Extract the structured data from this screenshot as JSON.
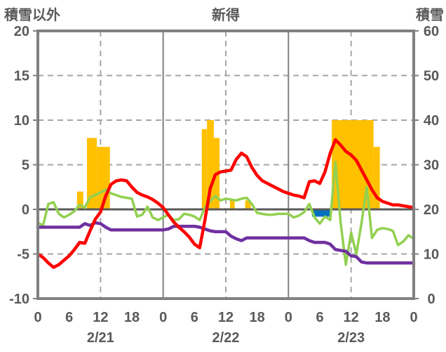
{
  "header": {
    "left_axis_title": "積雪以外",
    "title": "新得",
    "right_axis_title": "積雪"
  },
  "chart_data": {
    "type": "combo-bar-line",
    "title": "新得",
    "left_axis": {
      "title": "積雪以外",
      "min": -10,
      "max": 20,
      "ticks": [
        20,
        15,
        10,
        5,
        0,
        -5,
        -10
      ]
    },
    "right_axis": {
      "title": "積雪",
      "min": 0,
      "max": 60,
      "ticks": [
        60,
        50,
        40,
        30,
        20,
        10,
        0
      ]
    },
    "x_axis": {
      "unit": "hour",
      "range": [
        0,
        72
      ],
      "tick_hours": [
        0,
        6,
        12,
        18,
        24,
        30,
        36,
        42,
        48,
        54,
        60,
        66,
        72
      ],
      "tick_labels": [
        "0",
        "6",
        "12",
        "18",
        "0",
        "6",
        "12",
        "18",
        "0",
        "6",
        "12",
        "18",
        "0"
      ],
      "date_labels": [
        {
          "label": "2/21",
          "center_hour": 12
        },
        {
          "label": "2/22",
          "center_hour": 36
        },
        {
          "label": "2/23",
          "center_hour": 60
        }
      ]
    },
    "gridlines": {
      "horizontal_dashed_left_values": [
        15,
        10,
        5,
        -5
      ],
      "vertical_dashed_hours": [
        12,
        36,
        60
      ],
      "vertical_solid_hours": [
        24,
        48
      ],
      "zero_line_left_value": 0
    },
    "series": [
      {
        "name": "orange-bars",
        "type": "bar",
        "axis": "left",
        "color": "#FFC000",
        "segments": [
          {
            "start": 7.5,
            "end": 8.7,
            "value": 2
          },
          {
            "start": 9.4,
            "end": 11.3,
            "value": 8
          },
          {
            "start": 11.3,
            "end": 13.8,
            "value": 7
          },
          {
            "start": 31.4,
            "end": 32.4,
            "value": 9
          },
          {
            "start": 32.4,
            "end": 33.7,
            "value": 10
          },
          {
            "start": 33.7,
            "end": 34.8,
            "value": 8
          },
          {
            "start": 36.8,
            "end": 37.7,
            "value": 1
          },
          {
            "start": 39.7,
            "end": 40.8,
            "value": 1
          },
          {
            "start": 56.3,
            "end": 64.3,
            "value": 10
          },
          {
            "start": 64.3,
            "end": 65.5,
            "value": 7
          }
        ]
      },
      {
        "name": "blue-bar",
        "type": "bar",
        "axis": "left",
        "color": "#0070C0",
        "segments": [
          {
            "start": 52.5,
            "end": 56.1,
            "value": -0.7
          }
        ]
      },
      {
        "name": "green-line",
        "type": "line",
        "axis": "left",
        "color": "#92D050",
        "stroke_width": 3.5,
        "values": [
          -1.5,
          -1.8,
          0.6,
          0.8,
          -0.5,
          -0.9,
          -0.6,
          -0.2,
          0.5,
          0.2,
          1.4,
          1.6,
          1.9,
          2.2,
          1.8,
          1.6,
          1.4,
          1.3,
          1.2,
          -0.8,
          -0.6,
          0.3,
          -0.9,
          -1.2,
          -0.9,
          -0.6,
          -1.2,
          -1.1,
          -0.5,
          -0.6,
          -0.8,
          -1.2,
          0.2,
          0.9,
          1.5,
          1.0,
          1.2,
          1.1,
          1.0,
          1.2,
          1.3,
          0.6,
          -0.4,
          -0.5,
          -0.6,
          -0.6,
          -0.5,
          -0.5,
          -0.5,
          -0.9,
          -0.7,
          -0.3,
          0.6,
          -0.9,
          -1.6,
          -0.8,
          -1.2,
          5.3,
          -1.5,
          -6.2,
          -2.6,
          -5.0,
          -1.5,
          2.5,
          -3.2,
          -2.3,
          -2.1,
          -2.2,
          -2.4,
          -4.0,
          -3.6,
          -2.9,
          -3.3
        ]
      },
      {
        "name": "purple-line",
        "type": "line",
        "axis": "left",
        "color": "#7030A0",
        "stroke_width": 4.5,
        "values": [
          -2.0,
          -2.0,
          -2.0,
          -2.0,
          -2.0,
          -2.0,
          -2.0,
          -2.0,
          -2.0,
          -1.6,
          -1.8,
          -1.5,
          -1.6,
          -2.0,
          -2.3,
          -2.3,
          -2.3,
          -2.3,
          -2.3,
          -2.3,
          -2.3,
          -2.3,
          -2.3,
          -2.3,
          -2.3,
          -2.2,
          -1.9,
          -1.9,
          -1.9,
          -1.9,
          -1.9,
          -2.0,
          -2.2,
          -2.4,
          -2.5,
          -2.5,
          -2.5,
          -3.0,
          -3.3,
          -3.5,
          -3.2,
          -3.2,
          -3.2,
          -3.2,
          -3.2,
          -3.2,
          -3.2,
          -3.2,
          -3.2,
          -3.2,
          -3.2,
          -3.2,
          -3.5,
          -3.7,
          -3.7,
          -3.7,
          -3.9,
          -4.5,
          -4.6,
          -4.7,
          -5.2,
          -5.3,
          -5.9,
          -6.0,
          -6.0,
          -6.0,
          -6.0,
          -6.0,
          -6.0,
          -6.0,
          -6.0,
          -6.0,
          -6.0
        ]
      },
      {
        "name": "red-line",
        "type": "line",
        "axis": "left",
        "color": "#FF0000",
        "stroke_width": 4.5,
        "values": [
          -5.0,
          -5.4,
          -6.0,
          -6.5,
          -6.2,
          -5.7,
          -5.2,
          -4.5,
          -3.7,
          -3.8,
          -2.4,
          -1.1,
          -0.3,
          1.5,
          2.8,
          3.2,
          3.3,
          3.2,
          2.5,
          1.9,
          1.6,
          1.4,
          1.1,
          0.7,
          0.2,
          -0.6,
          -1.4,
          -2.0,
          -2.5,
          -3.1,
          -3.9,
          -4.3,
          -1.2,
          2.3,
          3.9,
          4.2,
          4.3,
          4.4,
          5.6,
          6.3,
          5.9,
          4.7,
          3.8,
          3.2,
          2.9,
          2.6,
          2.3,
          2.0,
          1.8,
          1.6,
          1.5,
          1.3,
          3.1,
          3.2,
          2.9,
          4.2,
          6.3,
          7.8,
          7.2,
          6.5,
          6.1,
          5.5,
          4.4,
          3.3,
          2.2,
          1.3,
          0.9,
          0.7,
          0.5,
          0.5,
          0.4,
          0.3,
          0.2
        ]
      }
    ],
    "legend": "none",
    "colors": {
      "text": "#595959",
      "frame": "#808080",
      "grid_dashed": "#A6A6A6",
      "grid_solid": "#808080",
      "zero_line": "#595959"
    }
  }
}
